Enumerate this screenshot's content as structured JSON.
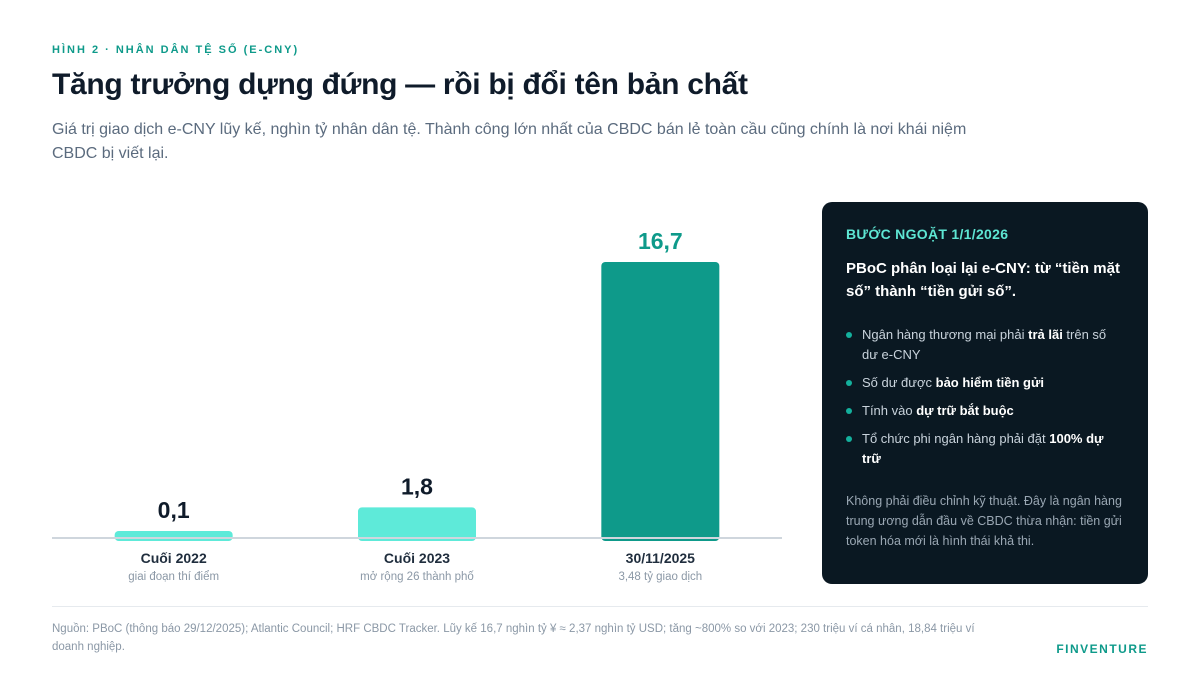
{
  "figure_label": "HÌNH 2 · NHÂN DÂN TỆ SỐ (E-CNY)",
  "title": "Tăng trưởng dựng đứng — rồi bị đổi tên bản chất",
  "subtitle": "Giá trị giao dịch e-CNY lũy kế, nghìn tỷ nhân dân tệ. Thành công lớn nhất của CBDC bán lẻ toàn cầu cũng chính là nơi khái niệm CBDC bị viết lại.",
  "chart_data": {
    "type": "bar",
    "title": "",
    "xlabel": "",
    "ylabel": "",
    "categories": [
      "Cuối 2022",
      "Cuối 2023",
      "30/11/2025"
    ],
    "category_notes": [
      "giai đoạn thí điểm",
      "mở rộng 26 thành phố",
      "3,48 tỷ giao dịch"
    ],
    "values": [
      0.1,
      1.8,
      16.7
    ],
    "value_labels": [
      "0,1",
      "1,8",
      "16,7"
    ],
    "bar_colors": [
      "#5eead9",
      "#5eead9",
      "#0e9a8a"
    ],
    "value_label_colors": [
      "#0f1b2a",
      "#0f1b2a",
      "#0e9a8a"
    ],
    "ylim": [
      0,
      16.7
    ],
    "grid": false,
    "legend": "none"
  },
  "panel": {
    "eyebrow": "BƯỚC NGOẶT 1/1/2026",
    "heading": "PBoC phân loại lại e-CNY: từ “tiền mặt số” thành “tiền gửi số”.",
    "bullets": [
      {
        "pre": "Ngân hàng thương mại phải ",
        "bold": "trả lãi",
        "post": " trên số dư e-CNY"
      },
      {
        "pre": "Số dư được ",
        "bold": "bảo hiểm tiền gửi",
        "post": ""
      },
      {
        "pre": "Tính vào ",
        "bold": "dự trữ bắt buộc",
        "post": ""
      },
      {
        "pre": "Tổ chức phi ngân hàng phải đặt ",
        "bold": "100% dự trữ",
        "post": ""
      }
    ],
    "note": "Không phải điều chỉnh kỹ thuật. Đây là ngân hàng trung ương dẫn đầu về CBDC thừa nhận: tiền gửi token hóa mới là hình thái khả thi."
  },
  "source": "Nguồn: PBoC (thông báo 29/12/2025); Atlantic Council; HRF CBDC Tracker. Lũy kế 16,7 nghìn tỷ ¥ ≈ 2,37 nghìn tỷ USD; tăng ~800% so với 2023; 230 triệu ví cá nhân, 18,84 triệu ví doanh nghiệp.",
  "brand": "FINVENTURE",
  "colors": {
    "accent": "#0e9a8a",
    "bar_light": "#5eead9",
    "panel_bg": "#0a1822",
    "panel_accent": "#5ee6d3"
  }
}
